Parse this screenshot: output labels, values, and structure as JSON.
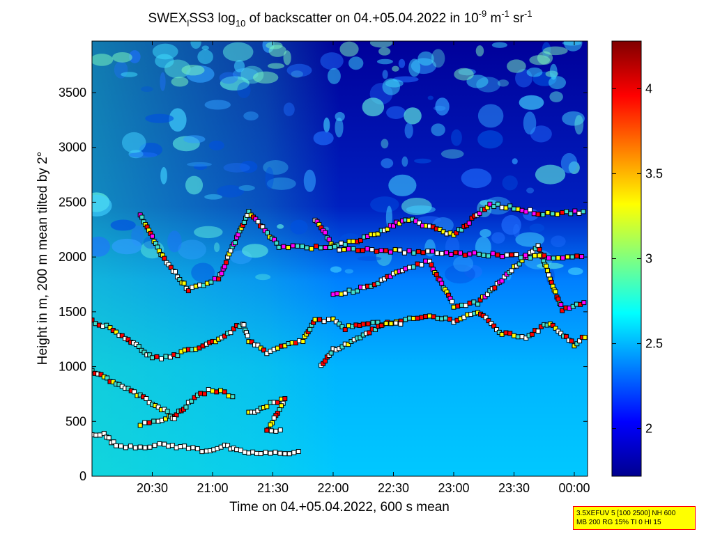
{
  "title": {
    "part1": "SWEX",
    "sub1": "l",
    "part2": "SS3 log",
    "sub2": "10",
    "part3": " of backscatter on 04.+05.04.2022 in 10",
    "sup1": "-9",
    "part4": " m",
    "sup2": "-1",
    "part5": " sr",
    "sup3": "-1"
  },
  "info_box": {
    "line1": "3.5XEFUV 5 [100 2500] NH 600",
    "line2": "MB 200 RG 15% TI 0 HI 15"
  },
  "chart_data": {
    "type": "heatmap",
    "xlabel": "Time on 04.+05.04.2022, 600 s mean",
    "ylabel": "Height in m, 200 m mean tilted by 2°",
    "x_ticks": [
      "20:30",
      "21:00",
      "21:30",
      "22:00",
      "22:30",
      "23:00",
      "23:30",
      "00:00"
    ],
    "x_tick_hours": [
      20.5,
      21.0,
      21.5,
      22.0,
      22.5,
      23.0,
      23.5,
      24.0
    ],
    "xlim_hours": [
      20.0,
      24.11
    ],
    "y_ticks": [
      0,
      500,
      1000,
      1500,
      2000,
      2500,
      3000,
      3500
    ],
    "ylim": [
      0,
      3970
    ],
    "colorbar": {
      "ticks": [
        2,
        2.5,
        3,
        3.5,
        4
      ],
      "tick_labels": [
        "2",
        "2.5",
        "3",
        "3.5",
        "4"
      ],
      "range": [
        1.72,
        4.28
      ],
      "colormap": "jet"
    },
    "layer_traces": [
      {
        "name": "lowest layer",
        "points": [
          [
            20.0,
            390
          ],
          [
            20.1,
            380
          ],
          [
            20.2,
            280
          ],
          [
            20.4,
            270
          ],
          [
            20.6,
            285
          ],
          [
            20.8,
            260
          ],
          [
            20.95,
            230
          ],
          [
            21.1,
            280
          ],
          [
            21.2,
            230
          ],
          [
            21.4,
            205
          ],
          [
            21.6,
            215
          ],
          [
            21.75,
            220
          ]
        ]
      },
      {
        "name": "low layer a",
        "points": [
          [
            20.4,
            470
          ],
          [
            20.55,
            500
          ],
          [
            20.7,
            560
          ],
          [
            20.8,
            660
          ],
          [
            20.9,
            750
          ],
          [
            21.0,
            790
          ],
          [
            21.1,
            760
          ],
          [
            21.2,
            720
          ]
        ]
      },
      {
        "name": "low layer b",
        "points": [
          [
            21.3,
            570
          ],
          [
            21.45,
            650
          ],
          [
            21.6,
            700
          ],
          [
            21.45,
            410
          ],
          [
            21.6,
            410
          ]
        ]
      },
      {
        "name": "sloping layer",
        "points": [
          [
            20.0,
            960
          ],
          [
            20.1,
            900
          ],
          [
            20.25,
            820
          ],
          [
            20.4,
            730
          ],
          [
            20.55,
            640
          ],
          [
            20.65,
            560
          ],
          [
            20.7,
            500
          ]
        ]
      },
      {
        "name": "mixing layer",
        "points": [
          [
            20.0,
            1420
          ],
          [
            20.15,
            1350
          ],
          [
            20.3,
            1250
          ],
          [
            20.5,
            1080
          ],
          [
            20.65,
            1080
          ],
          [
            20.8,
            1150
          ],
          [
            20.95,
            1200
          ],
          [
            21.1,
            1280
          ],
          [
            21.25,
            1400
          ],
          [
            21.3,
            1240
          ],
          [
            21.45,
            1120
          ],
          [
            21.6,
            1190
          ],
          [
            21.75,
            1240
          ],
          [
            21.85,
            1420
          ],
          [
            22.0,
            1420
          ],
          [
            22.1,
            1350
          ],
          [
            22.25,
            1400
          ],
          [
            22.45,
            1390
          ],
          [
            22.6,
            1420
          ],
          [
            22.8,
            1460
          ],
          [
            23.0,
            1420
          ],
          [
            23.2,
            1500
          ],
          [
            23.4,
            1300
          ],
          [
            23.6,
            1270
          ],
          [
            23.8,
            1400
          ],
          [
            24.0,
            1200
          ],
          [
            24.11,
            1300
          ]
        ]
      },
      {
        "name": "mid layer",
        "points": [
          [
            21.9,
            1000
          ],
          [
            22.0,
            1150
          ],
          [
            22.1,
            1200
          ],
          [
            22.2,
            1250
          ],
          [
            22.4,
            1380
          ],
          [
            22.6,
            1400
          ]
        ]
      },
      {
        "name": "upper layer a",
        "points": [
          [
            22.0,
            1650
          ],
          [
            22.2,
            1700
          ],
          [
            22.4,
            1780
          ],
          [
            22.6,
            1900
          ],
          [
            22.8,
            1960
          ],
          [
            23.0,
            1550
          ],
          [
            23.2,
            1580
          ],
          [
            23.5,
            1900
          ],
          [
            23.7,
            2100
          ],
          [
            23.9,
            1520
          ],
          [
            24.11,
            1580
          ]
        ]
      },
      {
        "name": "upper layer b",
        "points": [
          [
            21.85,
            2350
          ],
          [
            22.0,
            2100
          ],
          [
            22.2,
            2150
          ],
          [
            22.4,
            2230
          ],
          [
            22.6,
            2350
          ],
          [
            22.8,
            2280
          ],
          [
            23.0,
            2200
          ],
          [
            23.3,
            2480
          ],
          [
            23.5,
            2450
          ],
          [
            23.7,
            2400
          ],
          [
            23.9,
            2400
          ],
          [
            24.11,
            2420
          ]
        ]
      },
      {
        "name": "scattered upper",
        "points": [
          [
            20.4,
            2380
          ],
          [
            20.6,
            1980
          ],
          [
            20.8,
            1700
          ],
          [
            21.05,
            1800
          ],
          [
            21.3,
            2420
          ],
          [
            21.55,
            2100
          ],
          [
            23.75,
            2000
          ],
          [
            24.1,
            2000
          ]
        ]
      }
    ]
  }
}
